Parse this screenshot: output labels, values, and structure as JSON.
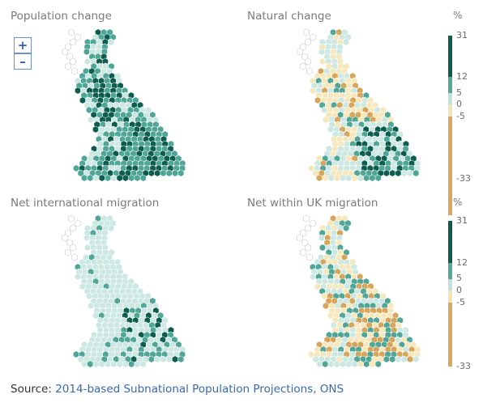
{
  "panels": [
    {
      "title": "Population change",
      "scheme": "pop"
    },
    {
      "title": "Natural change",
      "scheme": "nat"
    },
    {
      "title": "Net international migration",
      "scheme": "intl"
    },
    {
      "title": "Net within UK migration",
      "scheme": "uk"
    }
  ],
  "zoom": {
    "in_label": "+",
    "out_label": "–"
  },
  "legend": {
    "unit": "%",
    "ticks": [
      "31",
      "12",
      "5",
      "0",
      "-5",
      "-33"
    ],
    "colors": {
      "high": "#0e5c4e",
      "mid": "#52ab9b",
      "low": "#bfe3dc",
      "zero_neg": "#f3e3b5",
      "negative": "#d8a85e"
    }
  },
  "map_colors": {
    "outline": "#c8c8c8",
    "dark": "#0d5d4f",
    "mid": "#4fa596",
    "light": "#cde8e2",
    "pale": "#f6e7bd",
    "tan": "#d6a55a"
  },
  "source": {
    "prefix": "Source: ",
    "link": "2014-based Subnational Population Projections, ONS"
  }
}
